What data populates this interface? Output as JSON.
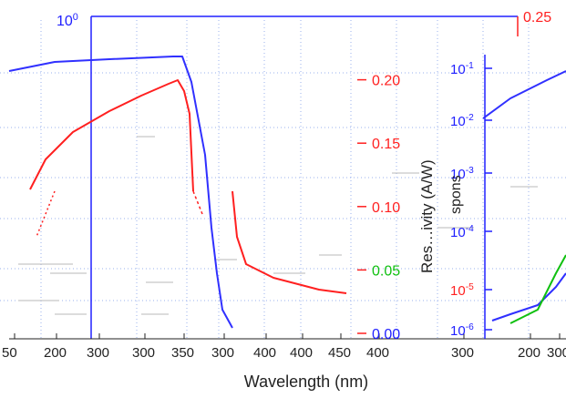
{
  "chart_data": {
    "type": "line",
    "xlabel": "Wavelength (nm)",
    "x_ticks": [
      "50",
      "200",
      "300",
      "300",
      "350",
      "300",
      "400",
      "400",
      "450",
      "400",
      "300",
      "200",
      "300"
    ],
    "left_axis": {
      "label": "",
      "scale": "log",
      "visible_tick_labels": [
        "10^0"
      ],
      "color": "#2020ff"
    },
    "right_axis": {
      "label": "Responsivity (A/W)",
      "visible_label_text": "Res…ivity (A/W)",
      "ylim": [
        0,
        0.25
      ],
      "ticks": [
        "0.00",
        "0.05",
        "0.10",
        "0.15",
        "0.20",
        "0.25"
      ],
      "color": "#ff2020"
    },
    "inset_axis": {
      "label": "spons",
      "scale": "log",
      "ticks": [
        "10^-6",
        "10^-5",
        "10^-4",
        "10^-3",
        "10^-2",
        "10^-1"
      ],
      "color": "#2020ff"
    },
    "series": [
      {
        "name": "",
        "color": "#3030ff",
        "axis": "left",
        "points": [
          [
            10,
            78
          ],
          [
            60,
            68
          ],
          [
            120,
            65
          ],
          [
            190,
            62
          ],
          [
            200,
            62
          ],
          [
            210,
            90
          ],
          [
            225,
            170
          ],
          [
            232,
            250
          ],
          [
            238,
            300
          ],
          [
            244,
            340
          ],
          [
            255,
            360
          ]
        ]
      },
      {
        "name": "",
        "color": "#ff2020",
        "axis": "right",
        "points": [
          [
            33,
            208
          ],
          [
            50,
            175
          ],
          [
            80,
            145
          ],
          [
            120,
            122
          ],
          [
            155,
            105
          ],
          [
            185,
            92
          ],
          [
            195,
            88
          ],
          [
            202,
            100
          ],
          [
            208,
            125
          ],
          [
            212,
            210
          ]
        ]
      },
      {
        "name": "",
        "color": "#ff2020",
        "axis": "right",
        "points": [
          [
            255,
            210
          ],
          [
            260,
            260
          ],
          [
            270,
            290
          ],
          [
            300,
            305
          ],
          [
            350,
            318
          ],
          [
            380,
            322
          ]
        ]
      },
      {
        "name": "",
        "color": "#3030ff",
        "axis": "inset",
        "points": [
          [
            530,
            130
          ],
          [
            560,
            108
          ],
          [
            600,
            88
          ],
          [
            621,
            78
          ]
        ]
      },
      {
        "name": "",
        "color": "#3030ff",
        "axis": "inset",
        "points": [
          [
            540,
            352
          ],
          [
            560,
            345
          ],
          [
            590,
            335
          ],
          [
            610,
            315
          ],
          [
            621,
            300
          ]
        ]
      },
      {
        "name": "",
        "color": "#10c010",
        "axis": "inset",
        "points": [
          [
            560,
            355
          ],
          [
            590,
            340
          ],
          [
            610,
            300
          ],
          [
            621,
            280
          ]
        ]
      }
    ]
  }
}
